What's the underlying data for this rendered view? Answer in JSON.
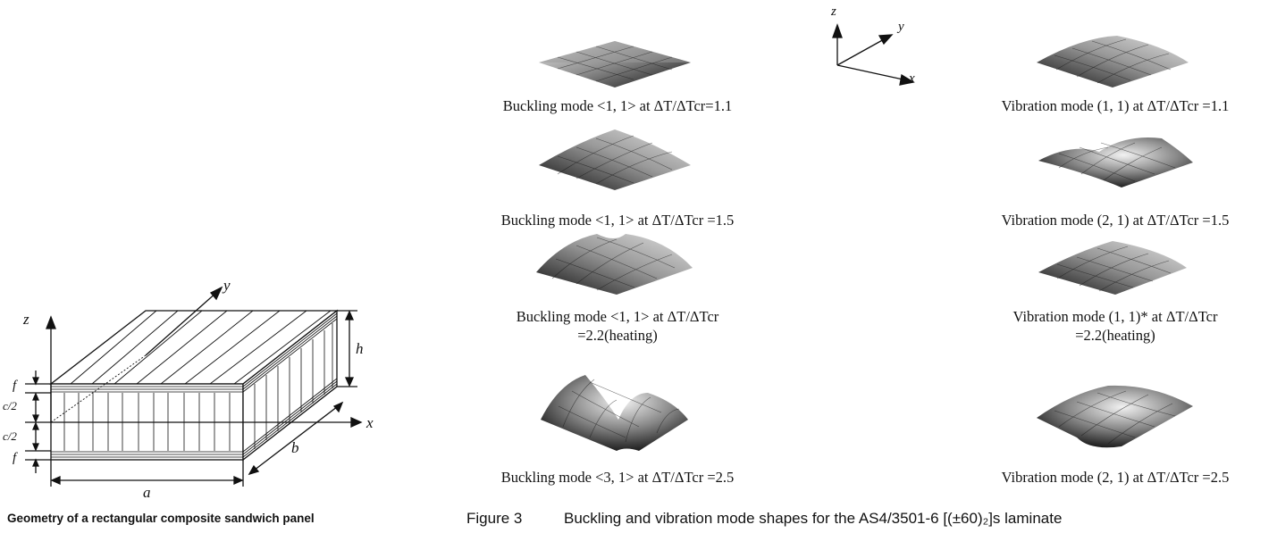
{
  "left_figure": {
    "caption": "Geometry of a rectangular composite sandwich panel",
    "labels": {
      "z": "z",
      "y": "y",
      "x": "x",
      "h": "h",
      "f_top": "f",
      "c2_top": "c/2",
      "c2_bottom": "c/2",
      "f_bottom": "f",
      "a": "a",
      "b": "b"
    }
  },
  "axes_legend": {
    "z": "z",
    "y": "y",
    "x": "x"
  },
  "buckling_modes": [
    {
      "line1": "Buckling mode <1, 1> at ΔT/ΔTcr=1.1",
      "line2": ""
    },
    {
      "line1": "Buckling mode <1, 1> at ΔT/ΔTcr =1.5",
      "line2": ""
    },
    {
      "line1": "Buckling mode <1, 1> at ΔT/ΔTcr",
      "line2": "=2.2(heating)"
    },
    {
      "line1": "Buckling mode <3, 1> at ΔT/ΔTcr =2.5",
      "line2": ""
    }
  ],
  "vibration_modes": [
    {
      "line1": "Vibration mode (1, 1) at ΔT/ΔTcr =1.1",
      "line2": ""
    },
    {
      "line1": "Vibration mode (2, 1) at ΔT/ΔTcr =1.5",
      "line2": ""
    },
    {
      "line1": "Vibration mode (1, 1)* at ΔT/ΔTcr",
      "line2": "=2.2(heating)"
    },
    {
      "line1": "Vibration mode (2, 1) at ΔT/ΔTcr =2.5",
      "line2": ""
    }
  ],
  "figure_caption": {
    "number": "Figure 3",
    "text": "Buckling and vibration mode shapes for the AS4/3501-6 [(±60)₂]s laminate"
  },
  "colors": {
    "surface_dark": "#1a1a1a",
    "surface_light": "#e8e8e8",
    "line": "#111111"
  }
}
